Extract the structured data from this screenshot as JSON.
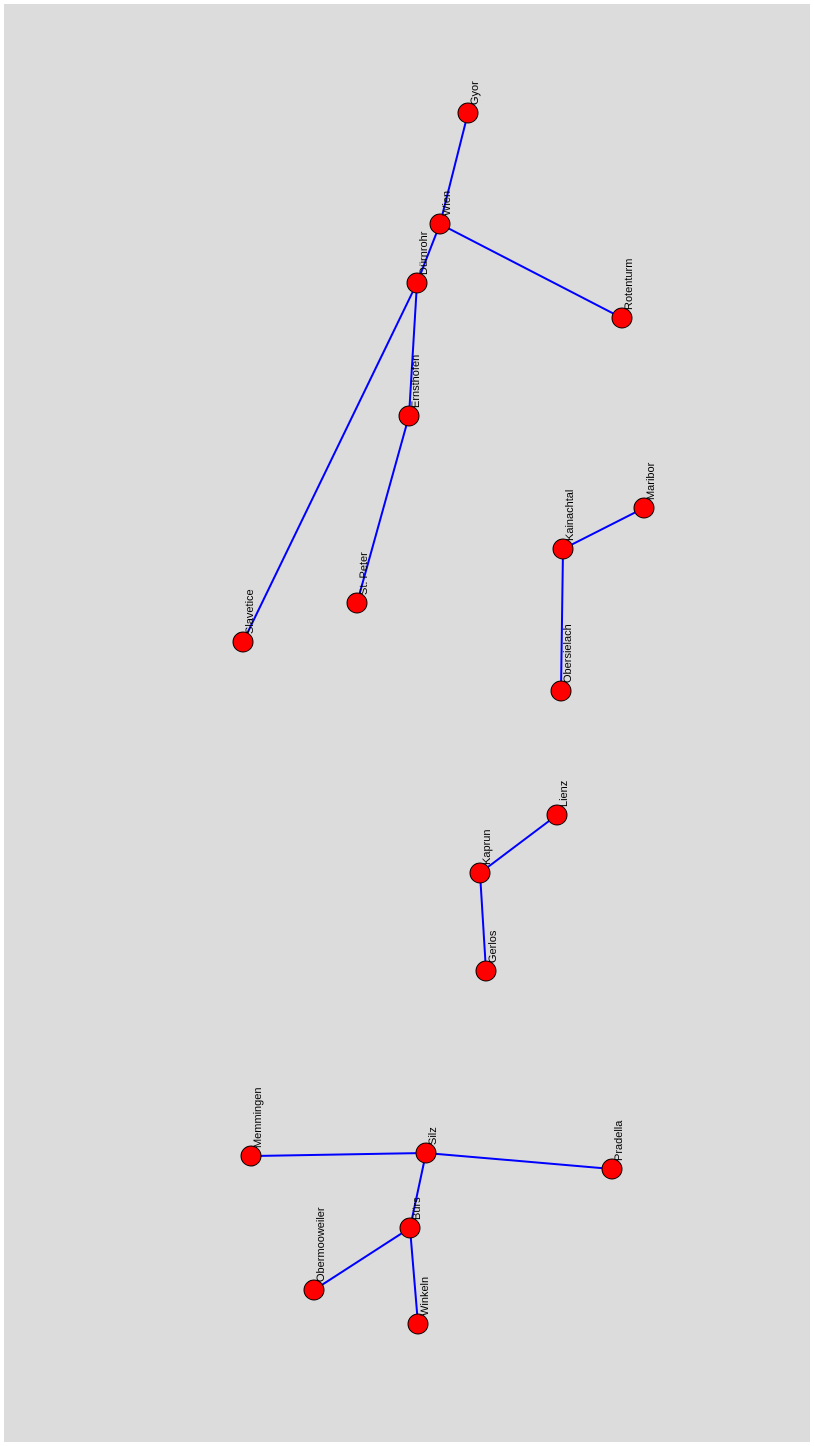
{
  "colors": {
    "background": "#dcdcdc",
    "node_fill": "#ff0000",
    "edge": "#0000ff"
  },
  "nodes": [
    {
      "id": "gyor",
      "label": "Gyor"
    },
    {
      "id": "wien",
      "label": "Wien"
    },
    {
      "id": "durnrohr",
      "label": "Dürnrohr"
    },
    {
      "id": "rotenturm",
      "label": "Rotenturm"
    },
    {
      "id": "ernsthofen",
      "label": "Ernsthofen"
    },
    {
      "id": "st-peter",
      "label": "St. Peter"
    },
    {
      "id": "slavetice",
      "label": "Slavetice"
    },
    {
      "id": "kainachtal",
      "label": "Kainachtal"
    },
    {
      "id": "maribor",
      "label": "Maribor"
    },
    {
      "id": "obersielach",
      "label": "Obersielach"
    },
    {
      "id": "lienz",
      "label": "Lienz"
    },
    {
      "id": "kaprun",
      "label": "Kaprun"
    },
    {
      "id": "gerlos",
      "label": "Gerlos"
    },
    {
      "id": "memmingen",
      "label": "Memmingen"
    },
    {
      "id": "silz",
      "label": "Silz"
    },
    {
      "id": "pradella",
      "label": "Pradella"
    },
    {
      "id": "burs",
      "label": "Bürs"
    },
    {
      "id": "obermooweiler",
      "label": "Obermooweiler"
    },
    {
      "id": "winkeln",
      "label": "Winkeln"
    }
  ],
  "edges": [
    [
      "gyor",
      "wien"
    ],
    [
      "wien",
      "durnrohr"
    ],
    [
      "wien",
      "rotenturm"
    ],
    [
      "durnrohr",
      "ernsthofen"
    ],
    [
      "durnrohr",
      "slavetice"
    ],
    [
      "ernsthofen",
      "st-peter"
    ],
    [
      "kainachtal",
      "maribor"
    ],
    [
      "kainachtal",
      "obersielach"
    ],
    [
      "kaprun",
      "lienz"
    ],
    [
      "kaprun",
      "gerlos"
    ],
    [
      "memmingen",
      "silz"
    ],
    [
      "silz",
      "pradella"
    ],
    [
      "silz",
      "burs"
    ],
    [
      "burs",
      "obermooweiler"
    ],
    [
      "burs",
      "winkeln"
    ]
  ]
}
